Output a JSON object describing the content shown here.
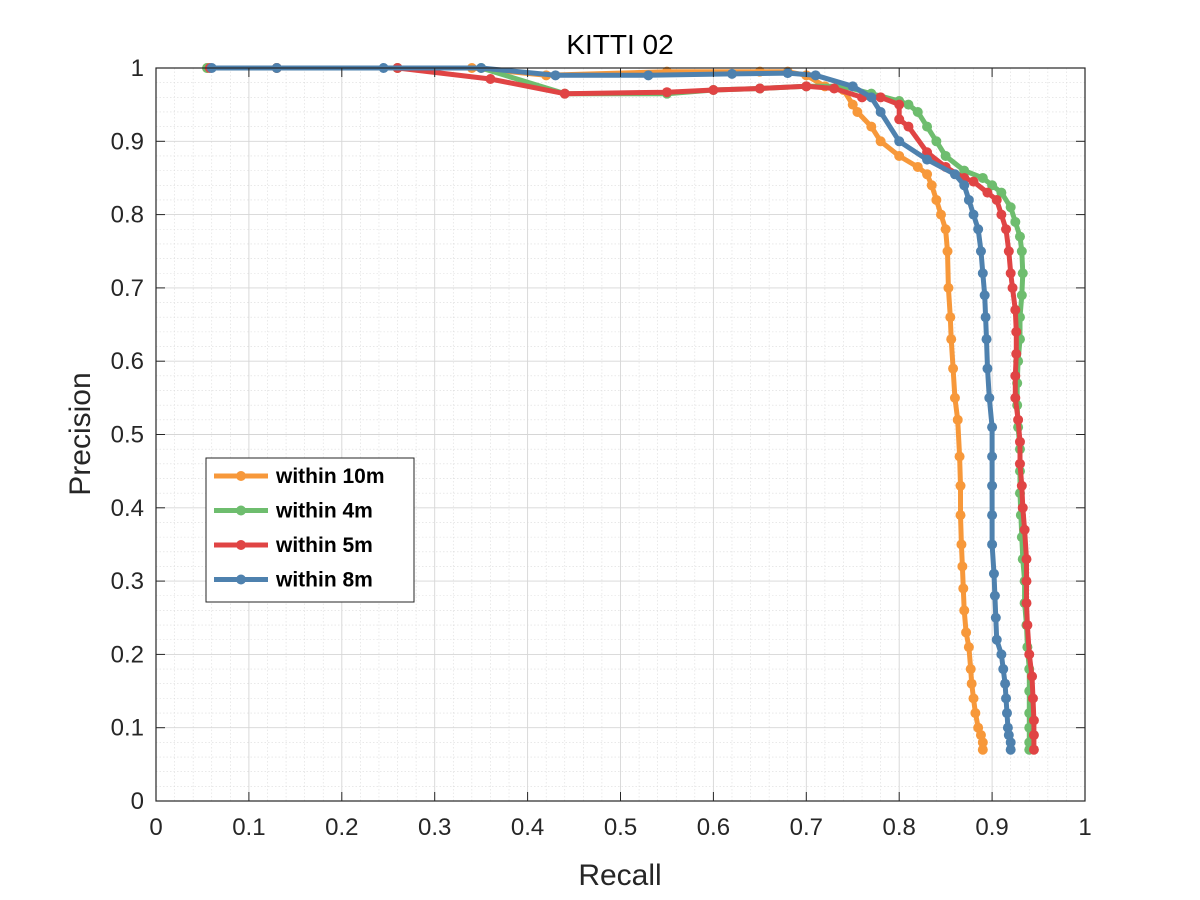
{
  "chart_data": {
    "type": "line",
    "title": "KITTI 02",
    "xlabel": "Recall",
    "ylabel": "Precision",
    "xlim": [
      0,
      1
    ],
    "ylim": [
      0,
      1
    ],
    "xticks": [
      "0",
      "0.1",
      "0.2",
      "0.3",
      "0.4",
      "0.5",
      "0.6",
      "0.7",
      "0.8",
      "0.9",
      "1"
    ],
    "yticks": [
      "0",
      "0.1",
      "0.2",
      "0.3",
      "0.4",
      "0.5",
      "0.6",
      "0.7",
      "0.8",
      "0.9",
      "1"
    ],
    "grid": true,
    "minor_grid": true,
    "legend_position": "left-middle",
    "series": [
      {
        "name": "within 10m",
        "color": "#F7983A",
        "points": [
          [
            0.055,
            1.0
          ],
          [
            0.13,
            1.0
          ],
          [
            0.26,
            1.0
          ],
          [
            0.34,
            1.0
          ],
          [
            0.42,
            0.99
          ],
          [
            0.55,
            0.995
          ],
          [
            0.65,
            0.995
          ],
          [
            0.68,
            0.995
          ],
          [
            0.7,
            0.99
          ],
          [
            0.72,
            0.975
          ],
          [
            0.74,
            0.97
          ],
          [
            0.75,
            0.95
          ],
          [
            0.755,
            0.94
          ],
          [
            0.77,
            0.92
          ],
          [
            0.78,
            0.9
          ],
          [
            0.8,
            0.88
          ],
          [
            0.82,
            0.865
          ],
          [
            0.83,
            0.855
          ],
          [
            0.835,
            0.84
          ],
          [
            0.84,
            0.82
          ],
          [
            0.845,
            0.8
          ],
          [
            0.85,
            0.78
          ],
          [
            0.852,
            0.75
          ],
          [
            0.853,
            0.7
          ],
          [
            0.855,
            0.66
          ],
          [
            0.856,
            0.63
          ],
          [
            0.858,
            0.59
          ],
          [
            0.86,
            0.55
          ],
          [
            0.863,
            0.52
          ],
          [
            0.865,
            0.47
          ],
          [
            0.866,
            0.43
          ],
          [
            0.866,
            0.39
          ],
          [
            0.867,
            0.35
          ],
          [
            0.868,
            0.32
          ],
          [
            0.869,
            0.29
          ],
          [
            0.87,
            0.26
          ],
          [
            0.872,
            0.23
          ],
          [
            0.875,
            0.21
          ],
          [
            0.877,
            0.18
          ],
          [
            0.878,
            0.16
          ],
          [
            0.88,
            0.14
          ],
          [
            0.882,
            0.12
          ],
          [
            0.885,
            0.1
          ],
          [
            0.888,
            0.09
          ],
          [
            0.89,
            0.08
          ],
          [
            0.89,
            0.07
          ]
        ]
      },
      {
        "name": "within 4m",
        "color": "#6EBD6E",
        "points": [
          [
            0.055,
            1.0
          ],
          [
            0.13,
            1.0
          ],
          [
            0.26,
            1.0
          ],
          [
            0.35,
            1.0
          ],
          [
            0.44,
            0.965
          ],
          [
            0.55,
            0.965
          ],
          [
            0.6,
            0.97
          ],
          [
            0.65,
            0.972
          ],
          [
            0.7,
            0.975
          ],
          [
            0.74,
            0.975
          ],
          [
            0.77,
            0.965
          ],
          [
            0.8,
            0.955
          ],
          [
            0.81,
            0.95
          ],
          [
            0.82,
            0.94
          ],
          [
            0.83,
            0.92
          ],
          [
            0.84,
            0.9
          ],
          [
            0.85,
            0.88
          ],
          [
            0.87,
            0.86
          ],
          [
            0.89,
            0.85
          ],
          [
            0.9,
            0.84
          ],
          [
            0.91,
            0.83
          ],
          [
            0.92,
            0.81
          ],
          [
            0.925,
            0.79
          ],
          [
            0.93,
            0.77
          ],
          [
            0.932,
            0.75
          ],
          [
            0.933,
            0.72
          ],
          [
            0.932,
            0.69
          ],
          [
            0.93,
            0.66
          ],
          [
            0.93,
            0.63
          ],
          [
            0.928,
            0.6
          ],
          [
            0.927,
            0.57
          ],
          [
            0.927,
            0.54
          ],
          [
            0.928,
            0.51
          ],
          [
            0.93,
            0.48
          ],
          [
            0.93,
            0.45
          ],
          [
            0.93,
            0.42
          ],
          [
            0.931,
            0.39
          ],
          [
            0.932,
            0.36
          ],
          [
            0.933,
            0.33
          ],
          [
            0.935,
            0.3
          ],
          [
            0.935,
            0.27
          ],
          [
            0.937,
            0.24
          ],
          [
            0.938,
            0.21
          ],
          [
            0.94,
            0.18
          ],
          [
            0.94,
            0.15
          ],
          [
            0.94,
            0.12
          ],
          [
            0.94,
            0.1
          ],
          [
            0.94,
            0.08
          ],
          [
            0.94,
            0.07
          ]
        ]
      },
      {
        "name": "within 5m",
        "color": "#E04444",
        "points": [
          [
            0.058,
            1.0
          ],
          [
            0.13,
            1.0
          ],
          [
            0.26,
            1.0
          ],
          [
            0.36,
            0.985
          ],
          [
            0.44,
            0.965
          ],
          [
            0.55,
            0.967
          ],
          [
            0.6,
            0.97
          ],
          [
            0.65,
            0.972
          ],
          [
            0.7,
            0.975
          ],
          [
            0.73,
            0.972
          ],
          [
            0.76,
            0.96
          ],
          [
            0.78,
            0.96
          ],
          [
            0.8,
            0.95
          ],
          [
            0.8,
            0.93
          ],
          [
            0.81,
            0.92
          ],
          [
            0.83,
            0.885
          ],
          [
            0.85,
            0.865
          ],
          [
            0.87,
            0.85
          ],
          [
            0.88,
            0.845
          ],
          [
            0.895,
            0.83
          ],
          [
            0.905,
            0.82
          ],
          [
            0.91,
            0.8
          ],
          [
            0.915,
            0.78
          ],
          [
            0.918,
            0.75
          ],
          [
            0.92,
            0.72
          ],
          [
            0.922,
            0.7
          ],
          [
            0.925,
            0.67
          ],
          [
            0.926,
            0.64
          ],
          [
            0.926,
            0.61
          ],
          [
            0.925,
            0.58
          ],
          [
            0.925,
            0.55
          ],
          [
            0.928,
            0.52
          ],
          [
            0.93,
            0.49
          ],
          [
            0.93,
            0.46
          ],
          [
            0.932,
            0.43
          ],
          [
            0.933,
            0.4
          ],
          [
            0.935,
            0.37
          ],
          [
            0.937,
            0.33
          ],
          [
            0.937,
            0.3
          ],
          [
            0.937,
            0.27
          ],
          [
            0.938,
            0.24
          ],
          [
            0.94,
            0.2
          ],
          [
            0.943,
            0.17
          ],
          [
            0.944,
            0.14
          ],
          [
            0.945,
            0.11
          ],
          [
            0.945,
            0.09
          ],
          [
            0.945,
            0.07
          ]
        ]
      },
      {
        "name": "within 8m",
        "color": "#4E81AE",
        "points": [
          [
            0.06,
            1.0
          ],
          [
            0.13,
            1.0
          ],
          [
            0.245,
            1.0
          ],
          [
            0.35,
            1.0
          ],
          [
            0.43,
            0.99
          ],
          [
            0.53,
            0.99
          ],
          [
            0.62,
            0.992
          ],
          [
            0.68,
            0.993
          ],
          [
            0.71,
            0.99
          ],
          [
            0.75,
            0.975
          ],
          [
            0.77,
            0.96
          ],
          [
            0.78,
            0.94
          ],
          [
            0.8,
            0.9
          ],
          [
            0.83,
            0.875
          ],
          [
            0.86,
            0.855
          ],
          [
            0.87,
            0.84
          ],
          [
            0.875,
            0.82
          ],
          [
            0.88,
            0.8
          ],
          [
            0.885,
            0.78
          ],
          [
            0.888,
            0.75
          ],
          [
            0.89,
            0.72
          ],
          [
            0.892,
            0.69
          ],
          [
            0.893,
            0.66
          ],
          [
            0.894,
            0.63
          ],
          [
            0.895,
            0.59
          ],
          [
            0.897,
            0.55
          ],
          [
            0.9,
            0.51
          ],
          [
            0.9,
            0.47
          ],
          [
            0.9,
            0.43
          ],
          [
            0.9,
            0.39
          ],
          [
            0.9,
            0.35
          ],
          [
            0.902,
            0.31
          ],
          [
            0.903,
            0.28
          ],
          [
            0.904,
            0.25
          ],
          [
            0.905,
            0.22
          ],
          [
            0.91,
            0.2
          ],
          [
            0.912,
            0.18
          ],
          [
            0.914,
            0.16
          ],
          [
            0.915,
            0.14
          ],
          [
            0.916,
            0.12
          ],
          [
            0.917,
            0.1
          ],
          [
            0.918,
            0.09
          ],
          [
            0.92,
            0.08
          ],
          [
            0.92,
            0.07
          ]
        ]
      }
    ]
  }
}
